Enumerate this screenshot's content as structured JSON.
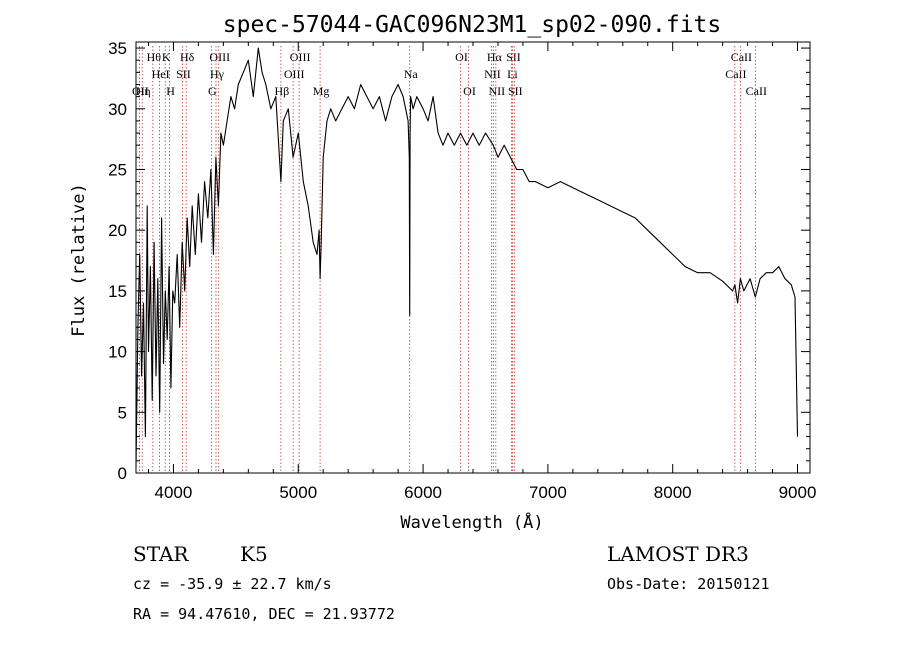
{
  "chart_data": {
    "type": "line",
    "title": "spec-57044-GAC096N23M1_sp02-090.fits",
    "xlabel": "Wavelength (Å)",
    "ylabel": "Flux (relative)",
    "xlim": [
      3700,
      9100
    ],
    "ylim": [
      0,
      35.5
    ],
    "xticks": [
      4000,
      5000,
      6000,
      7000,
      8000,
      9000
    ],
    "yticks": [
      0,
      5,
      10,
      15,
      20,
      25,
      30,
      35
    ],
    "grid": false,
    "series": [
      {
        "name": "spectrum",
        "x": [
          3700,
          3715,
          3730,
          3745,
          3760,
          3775,
          3790,
          3800,
          3815,
          3830,
          3845,
          3860,
          3875,
          3890,
          3905,
          3920,
          3935,
          3950,
          3965,
          3980,
          3995,
          4010,
          4030,
          4050,
          4070,
          4090,
          4110,
          4130,
          4150,
          4175,
          4200,
          4225,
          4250,
          4275,
          4300,
          4320,
          4340,
          4360,
          4380,
          4400,
          4430,
          4460,
          4490,
          4520,
          4560,
          4600,
          4640,
          4680,
          4710,
          4740,
          4780,
          4820,
          4861,
          4880,
          4920,
          4959,
          5000,
          5040,
          5080,
          5120,
          5150,
          5167,
          5175,
          5184,
          5200,
          5230,
          5260,
          5300,
          5350,
          5400,
          5450,
          5500,
          5550,
          5600,
          5650,
          5700,
          5750,
          5800,
          5840,
          5880,
          5890,
          5893,
          5896,
          5900,
          5920,
          5950,
          6000,
          6040,
          6080,
          6120,
          6160,
          6200,
          6250,
          6300,
          6350,
          6400,
          6450,
          6500,
          6563,
          6600,
          6650,
          6700,
          6750,
          6800,
          6850,
          6900,
          7000,
          7100,
          7200,
          7300,
          7400,
          7500,
          7600,
          7700,
          7800,
          7900,
          8000,
          8100,
          8200,
          8300,
          8400,
          8480,
          8498,
          8520,
          8542,
          8570,
          8620,
          8662,
          8700,
          8750,
          8800,
          8850,
          8900,
          8950,
          8980,
          9000
        ],
        "values": [
          0.5,
          12,
          18,
          8,
          14,
          3,
          22,
          10,
          17,
          6,
          19,
          8,
          16,
          5,
          21,
          9,
          15,
          11,
          17,
          7,
          15,
          14,
          18,
          12,
          19,
          15,
          21,
          17,
          22,
          18,
          23,
          19,
          24,
          21,
          25,
          18,
          26,
          22,
          28,
          27,
          29,
          31,
          30,
          32,
          33,
          34,
          31,
          35,
          33,
          32,
          30,
          31,
          24,
          29,
          30,
          26,
          28,
          24,
          22,
          19,
          18,
          20,
          16,
          19,
          26,
          29,
          30,
          29,
          30,
          31,
          30,
          32,
          31,
          30,
          31,
          29,
          31,
          32,
          31,
          29,
          26,
          13,
          28,
          31,
          30,
          31,
          30,
          29,
          31,
          28,
          27,
          28,
          27,
          28,
          27,
          28,
          27,
          28,
          27,
          26,
          27,
          26,
          25,
          25,
          24,
          24,
          23.5,
          24,
          23.5,
          23,
          22.5,
          22,
          21.5,
          21,
          20,
          19,
          18,
          17,
          16.5,
          16.5,
          15.8,
          15,
          15.5,
          14,
          16,
          15,
          16,
          14.5,
          16,
          16.5,
          16.5,
          17,
          16,
          15.5,
          14.5,
          3
        ]
      }
    ],
    "line_markers": [
      {
        "wavelength": 3727,
        "row": 2,
        "label": "OII"
      },
      {
        "wavelength": 3750,
        "row": 2,
        "label": "Hη"
      },
      {
        "wavelength": 3835,
        "row": 0,
        "label": "Hθ"
      },
      {
        "wavelength": 3889,
        "row": 1,
        "label": "HeI"
      },
      {
        "wavelength": 3934,
        "row": 0,
        "label": "K"
      },
      {
        "wavelength": 3969,
        "row": 2,
        "label": "H"
      },
      {
        "wavelength": 4072,
        "row": 1,
        "label": "SII"
      },
      {
        "wavelength": 4102,
        "row": 0,
        "label": "Hδ"
      },
      {
        "wavelength": 4304,
        "row": 2,
        "label": "G"
      },
      {
        "wavelength": 4341,
        "row": 1,
        "label": "Hγ"
      },
      {
        "wavelength": 4363,
        "row": 0,
        "label": "OIII"
      },
      {
        "wavelength": 4861,
        "row": 2,
        "label": "Hβ"
      },
      {
        "wavelength": 4959,
        "row": 1,
        "label": "OIII"
      },
      {
        "wavelength": 5007,
        "row": 0,
        "label": "OIII"
      },
      {
        "wavelength": 5175,
        "row": 2,
        "label": "Mg"
      },
      {
        "wavelength": 5893,
        "row": 1,
        "label": "Na"
      },
      {
        "wavelength": 6300,
        "row": 0,
        "label": "OI"
      },
      {
        "wavelength": 6364,
        "row": 2,
        "label": "OI"
      },
      {
        "wavelength": 6548,
        "row": 1,
        "label": "NII"
      },
      {
        "wavelength": 6563,
        "row": 0,
        "label": "Hα"
      },
      {
        "wavelength": 6583,
        "row": 2,
        "label": "NII"
      },
      {
        "wavelength": 6708,
        "row": 1,
        "label": "Li"
      },
      {
        "wavelength": 6716,
        "row": 0,
        "label": "SII"
      },
      {
        "wavelength": 6731,
        "row": 2,
        "label": "SII"
      },
      {
        "wavelength": 8498,
        "row": 1,
        "label": "CaII"
      },
      {
        "wavelength": 8542,
        "row": 0,
        "label": "CaII"
      },
      {
        "wavelength": 8662,
        "row": 2,
        "label": "CaII"
      }
    ],
    "marker_color": "#c0392b",
    "line_color": "#000000"
  },
  "info": {
    "object_class": "STAR",
    "subclass": "K5",
    "survey": "LAMOST DR3",
    "redshift": "cz = -35.9 ± 22.7 km/s",
    "obs_date": "Obs-Date: 20150121",
    "coords": "RA =  94.47610, DEC =  21.93772"
  }
}
